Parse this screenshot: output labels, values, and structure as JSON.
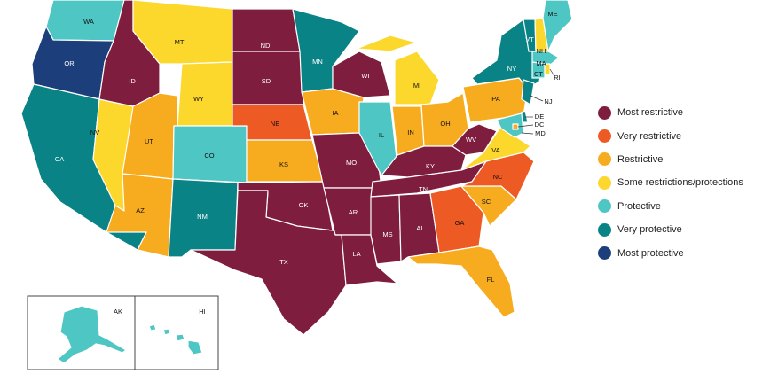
{
  "legend": [
    {
      "key": "most_restrictive",
      "label": "Most restrictive",
      "color": "#7e1d3d"
    },
    {
      "key": "very_restrictive",
      "label": "Very restrictive",
      "color": "#ee5a24"
    },
    {
      "key": "restrictive",
      "label": "Restrictive",
      "color": "#f7ac1f"
    },
    {
      "key": "some",
      "label": "Some restrictions/protections",
      "color": "#fcd72c"
    },
    {
      "key": "protective",
      "label": "Protective",
      "color": "#4ec6c3"
    },
    {
      "key": "very_protective",
      "label": "Very protective",
      "color": "#0a8386"
    },
    {
      "key": "most_protective",
      "label": "Most protective",
      "color": "#1c3f7c"
    }
  ],
  "states": {
    "WA": "protective",
    "OR": "most_protective",
    "CA": "very_protective",
    "NV": "some",
    "ID": "most_restrictive",
    "MT": "some",
    "WY": "some",
    "UT": "restrictive",
    "AZ": "restrictive",
    "CO": "protective",
    "NM": "very_protective",
    "ND": "most_restrictive",
    "SD": "most_restrictive",
    "NE": "very_restrictive",
    "KS": "restrictive",
    "OK": "most_restrictive",
    "TX": "most_restrictive",
    "MN": "very_protective",
    "IA": "restrictive",
    "MO": "most_restrictive",
    "AR": "most_restrictive",
    "LA": "most_restrictive",
    "WI": "most_restrictive",
    "IL": "protective",
    "MI": "some",
    "IN": "restrictive",
    "OH": "restrictive",
    "KY": "most_restrictive",
    "TN": "most_restrictive",
    "MS": "most_restrictive",
    "AL": "most_restrictive",
    "GA": "very_restrictive",
    "FL": "restrictive",
    "SC": "restrictive",
    "NC": "very_restrictive",
    "VA": "some",
    "WV": "most_restrictive",
    "PA": "restrictive",
    "NY": "very_protective",
    "VT": "very_protective",
    "NH": "some",
    "ME": "protective",
    "MA": "protective",
    "CT": "protective",
    "RI": "some",
    "NJ": "very_protective",
    "DE": "very_protective",
    "MD": "protective",
    "DC": "restrictive",
    "AK": "protective",
    "HI": "protective"
  },
  "labels": {
    "WA": "WA",
    "OR": "OR",
    "CA": "CA",
    "NV": "NV",
    "ID": "ID",
    "MT": "MT",
    "WY": "WY",
    "UT": "UT",
    "AZ": "AZ",
    "CO": "CO",
    "NM": "NM",
    "ND": "ND",
    "SD": "SD",
    "NE": "NE",
    "KS": "KS",
    "OK": "OK",
    "TX": "TX",
    "MN": "MN",
    "IA": "IA",
    "MO": "MO",
    "AR": "AR",
    "LA": "LA",
    "WI": "WI",
    "IL": "IL",
    "MI": "MI",
    "IN": "IN",
    "OH": "OH",
    "KY": "KY",
    "TN": "TN",
    "MS": "MS",
    "AL": "AL",
    "GA": "GA",
    "FL": "FL",
    "SC": "SC",
    "NC": "NC",
    "VA": "VA",
    "WV": "WV",
    "PA": "PA",
    "NY": "NY",
    "VT": "VT",
    "NH": "NH",
    "ME": "ME",
    "MA": "MA",
    "CT": "CT",
    "RI": "RI",
    "NJ": "NJ",
    "DE": "DE",
    "DC": "DC",
    "MD": "MD",
    "AK": "AK",
    "HI": "HI"
  }
}
